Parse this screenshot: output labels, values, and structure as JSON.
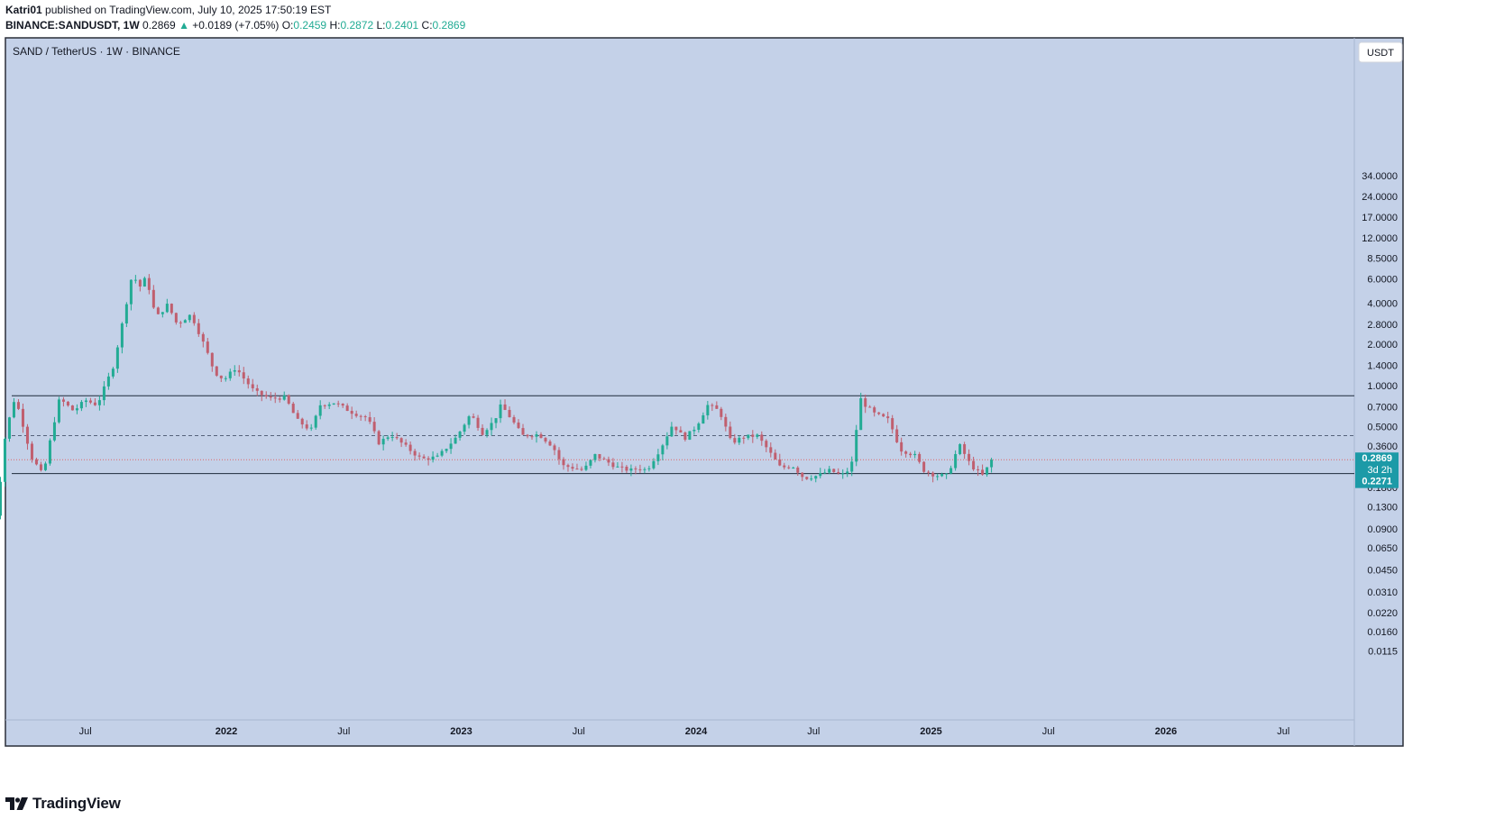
{
  "header": {
    "author": "Katri01",
    "published_text": "published on TradingView.com, July 10, 2025 17:50:19 EST",
    "symbol_line": "BINANCE:SANDUSDT, 1W",
    "last": "0.2869",
    "change_arrow": "▲",
    "change": "+0.0189 (+7.05%)",
    "o_label": "O:",
    "o_value": "0.2459",
    "h_label": "H:",
    "h_value": "0.2872",
    "l_label": "L:",
    "l_value": "0.2401",
    "c_label": "C:",
    "c_value": "0.2869"
  },
  "chart": {
    "legend_title": "SAND / TetherUS · 1W · BINANCE",
    "currency_button": "USDT",
    "price_badge": {
      "price": "0.2869",
      "countdown": "3d 2h"
    },
    "level_badge": "0.2271"
  },
  "footer": {
    "brand": "TradingView"
  },
  "colors": {
    "plot_bg": "#c4d1e8",
    "up": "#22ab94",
    "down": "#c05f6f",
    "badge": "#1c9aa7",
    "hline": "#1e2a3a",
    "price_line": "#e06666"
  },
  "chart_data": {
    "type": "candlestick",
    "scale": "log",
    "y_ticks": [
      "34.0000",
      "24.0000",
      "17.0000",
      "12.0000",
      "8.5000",
      "6.0000",
      "4.0000",
      "2.8000",
      "2.0000",
      "1.4000",
      "1.0000",
      "0.7000",
      "0.5000",
      "0.3600",
      "0.2800",
      "0.1800",
      "0.1300",
      "0.0900",
      "0.0650",
      "0.0450",
      "0.0310",
      "0.0220",
      "0.0160",
      "0.0115"
    ],
    "x_ticks": [
      {
        "t": 0.4,
        "label": "Jul"
      },
      {
        "t": 1.0,
        "label": "2022"
      },
      {
        "t": 1.5,
        "label": "Jul"
      },
      {
        "t": 2.0,
        "label": "2023"
      },
      {
        "t": 2.5,
        "label": "Jul"
      },
      {
        "t": 3.0,
        "label": "2024"
      },
      {
        "t": 3.5,
        "label": "Jul"
      },
      {
        "t": 4.0,
        "label": "2025"
      },
      {
        "t": 4.5,
        "label": "Jul"
      },
      {
        "t": 5.0,
        "label": "2026"
      },
      {
        "t": 5.5,
        "label": "Jul"
      }
    ],
    "horizontal_levels": [
      {
        "price": 0.84,
        "style": "solid"
      },
      {
        "price": 0.43,
        "style": "dashed"
      },
      {
        "price": 0.2271,
        "style": "solid"
      }
    ],
    "last_price": 0.2869,
    "anchors": [
      [
        0.0,
        0.07
      ],
      [
        0.03,
        0.15
      ],
      [
        0.06,
        0.45
      ],
      [
        0.1,
        0.82
      ],
      [
        0.13,
        0.55
      ],
      [
        0.17,
        0.3
      ],
      [
        0.22,
        0.22
      ],
      [
        0.26,
        0.48
      ],
      [
        0.29,
        0.8
      ],
      [
        0.35,
        0.65
      ],
      [
        0.4,
        0.78
      ],
      [
        0.45,
        0.72
      ],
      [
        0.52,
        1.4
      ],
      [
        0.56,
        3.0
      ],
      [
        0.6,
        6.6
      ],
      [
        0.63,
        5.2
      ],
      [
        0.66,
        6.2
      ],
      [
        0.7,
        3.1
      ],
      [
        0.75,
        3.9
      ],
      [
        0.79,
        2.8
      ],
      [
        0.85,
        3.3
      ],
      [
        0.91,
        1.9
      ],
      [
        0.95,
        1.25
      ],
      [
        0.99,
        1.1
      ],
      [
        1.04,
        1.35
      ],
      [
        1.07,
        1.15
      ],
      [
        1.12,
        0.9
      ],
      [
        1.19,
        0.8
      ],
      [
        1.25,
        0.82
      ],
      [
        1.3,
        0.56
      ],
      [
        1.36,
        0.47
      ],
      [
        1.4,
        0.72
      ],
      [
        1.46,
        0.75
      ],
      [
        1.54,
        0.63
      ],
      [
        1.6,
        0.58
      ],
      [
        1.65,
        0.38
      ],
      [
        1.7,
        0.44
      ],
      [
        1.78,
        0.34
      ],
      [
        1.83,
        0.29
      ],
      [
        1.9,
        0.3
      ],
      [
        1.98,
        0.42
      ],
      [
        2.04,
        0.62
      ],
      [
        2.09,
        0.45
      ],
      [
        2.14,
        0.55
      ],
      [
        2.17,
        0.72
      ],
      [
        2.21,
        0.58
      ],
      [
        2.26,
        0.43
      ],
      [
        2.33,
        0.44
      ],
      [
        2.39,
        0.36
      ],
      [
        2.43,
        0.26
      ],
      [
        2.48,
        0.25
      ],
      [
        2.52,
        0.24
      ],
      [
        2.57,
        0.31
      ],
      [
        2.6,
        0.29
      ],
      [
        2.67,
        0.25
      ],
      [
        2.72,
        0.24
      ],
      [
        2.76,
        0.25
      ],
      [
        2.79,
        0.24
      ],
      [
        2.85,
        0.35
      ],
      [
        2.9,
        0.52
      ],
      [
        2.95,
        0.41
      ],
      [
        3.0,
        0.5
      ],
      [
        3.05,
        0.72
      ],
      [
        3.1,
        0.65
      ],
      [
        3.15,
        0.38
      ],
      [
        3.2,
        0.42
      ],
      [
        3.26,
        0.43
      ],
      [
        3.3,
        0.35
      ],
      [
        3.36,
        0.25
      ],
      [
        3.41,
        0.26
      ],
      [
        3.46,
        0.21
      ],
      [
        3.52,
        0.22
      ],
      [
        3.57,
        0.24
      ],
      [
        3.62,
        0.22
      ],
      [
        3.66,
        0.25
      ],
      [
        3.7,
        0.8
      ],
      [
        3.72,
        0.72
      ],
      [
        3.76,
        0.62
      ],
      [
        3.82,
        0.56
      ],
      [
        3.87,
        0.34
      ],
      [
        3.93,
        0.31
      ],
      [
        3.97,
        0.24
      ],
      [
        4.02,
        0.22
      ],
      [
        4.07,
        0.22
      ],
      [
        4.12,
        0.37
      ],
      [
        4.17,
        0.26
      ],
      [
        4.22,
        0.22
      ],
      [
        4.26,
        0.2869
      ]
    ]
  }
}
